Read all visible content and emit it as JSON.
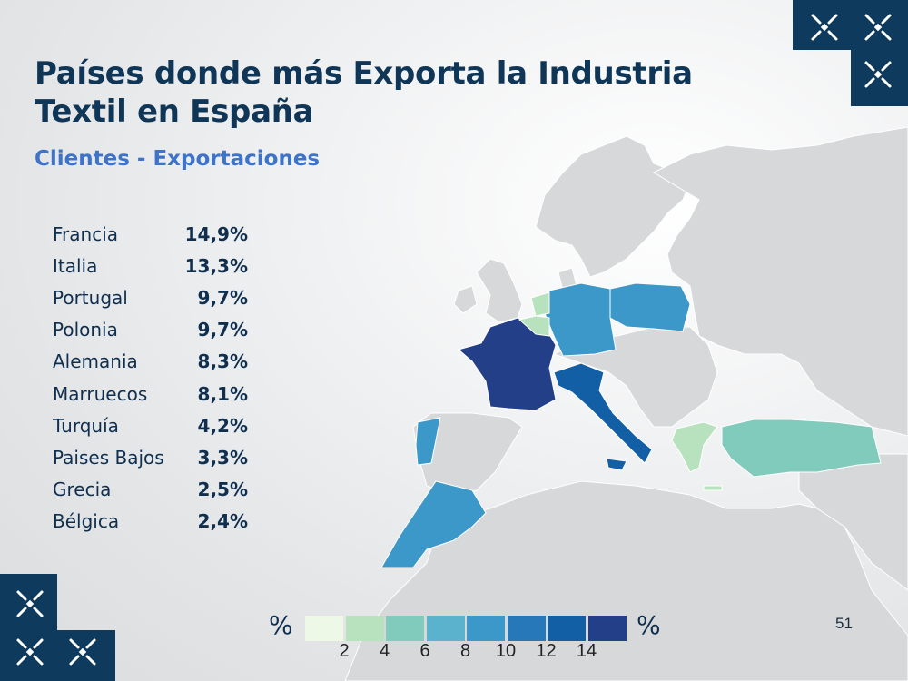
{
  "header": {
    "title_line1": "Países donde más Exporta la Industria",
    "title_line2": "Textil en España",
    "subtitle": "Clientes - Exportaciones"
  },
  "page_number": "51",
  "colors": {
    "title": "#0f3557",
    "subtitle": "#3d74c9",
    "land_default": "#d7d8da",
    "sea": "#ffffff",
    "decor": "#0e3a5e"
  },
  "chart_data": {
    "type": "choropleth",
    "title": "Países donde más Exporta la Industria Textil en España",
    "subtitle": "Clientes - Exportaciones",
    "unit": "%",
    "countries": [
      {
        "name": "Francia",
        "label": "14,9%",
        "value": 14.9
      },
      {
        "name": "Italia",
        "label": "13,3%",
        "value": 13.3
      },
      {
        "name": "Portugal",
        "label": "9,7%",
        "value": 9.7
      },
      {
        "name": "Polonia",
        "label": "9,7%",
        "value": 9.7
      },
      {
        "name": "Alemania",
        "label": "8,3%",
        "value": 8.3
      },
      {
        "name": "Marruecos",
        "label": "8,1%",
        "value": 8.1
      },
      {
        "name": "Turquía",
        "label": "4,2%",
        "value": 4.2
      },
      {
        "name": "Paises Bajos",
        "label": "3,3%",
        "value": 3.3
      },
      {
        "name": "Grecia",
        "label": "2,5%",
        "value": 2.5
      },
      {
        "name": "Bélgica",
        "label": "2,4%",
        "value": 2.4
      }
    ],
    "legend": {
      "label_left": "%",
      "label_right": "%",
      "ticks": [
        "2",
        "4",
        "6",
        "8",
        "10",
        "12",
        "14"
      ],
      "bins": [
        {
          "range": [
            0,
            2
          ],
          "color": "#eef8e6"
        },
        {
          "range": [
            2,
            4
          ],
          "color": "#b8e2bd"
        },
        {
          "range": [
            4,
            6
          ],
          "color": "#80cbbc"
        },
        {
          "range": [
            6,
            8
          ],
          "color": "#5bb2cc"
        },
        {
          "range": [
            8,
            10
          ],
          "color": "#3b98c8"
        },
        {
          "range": [
            10,
            12
          ],
          "color": "#2678b9"
        },
        {
          "range": [
            12,
            14
          ],
          "color": "#135fa6"
        },
        {
          "range": [
            14,
            16
          ],
          "color": "#233f88"
        }
      ]
    }
  }
}
